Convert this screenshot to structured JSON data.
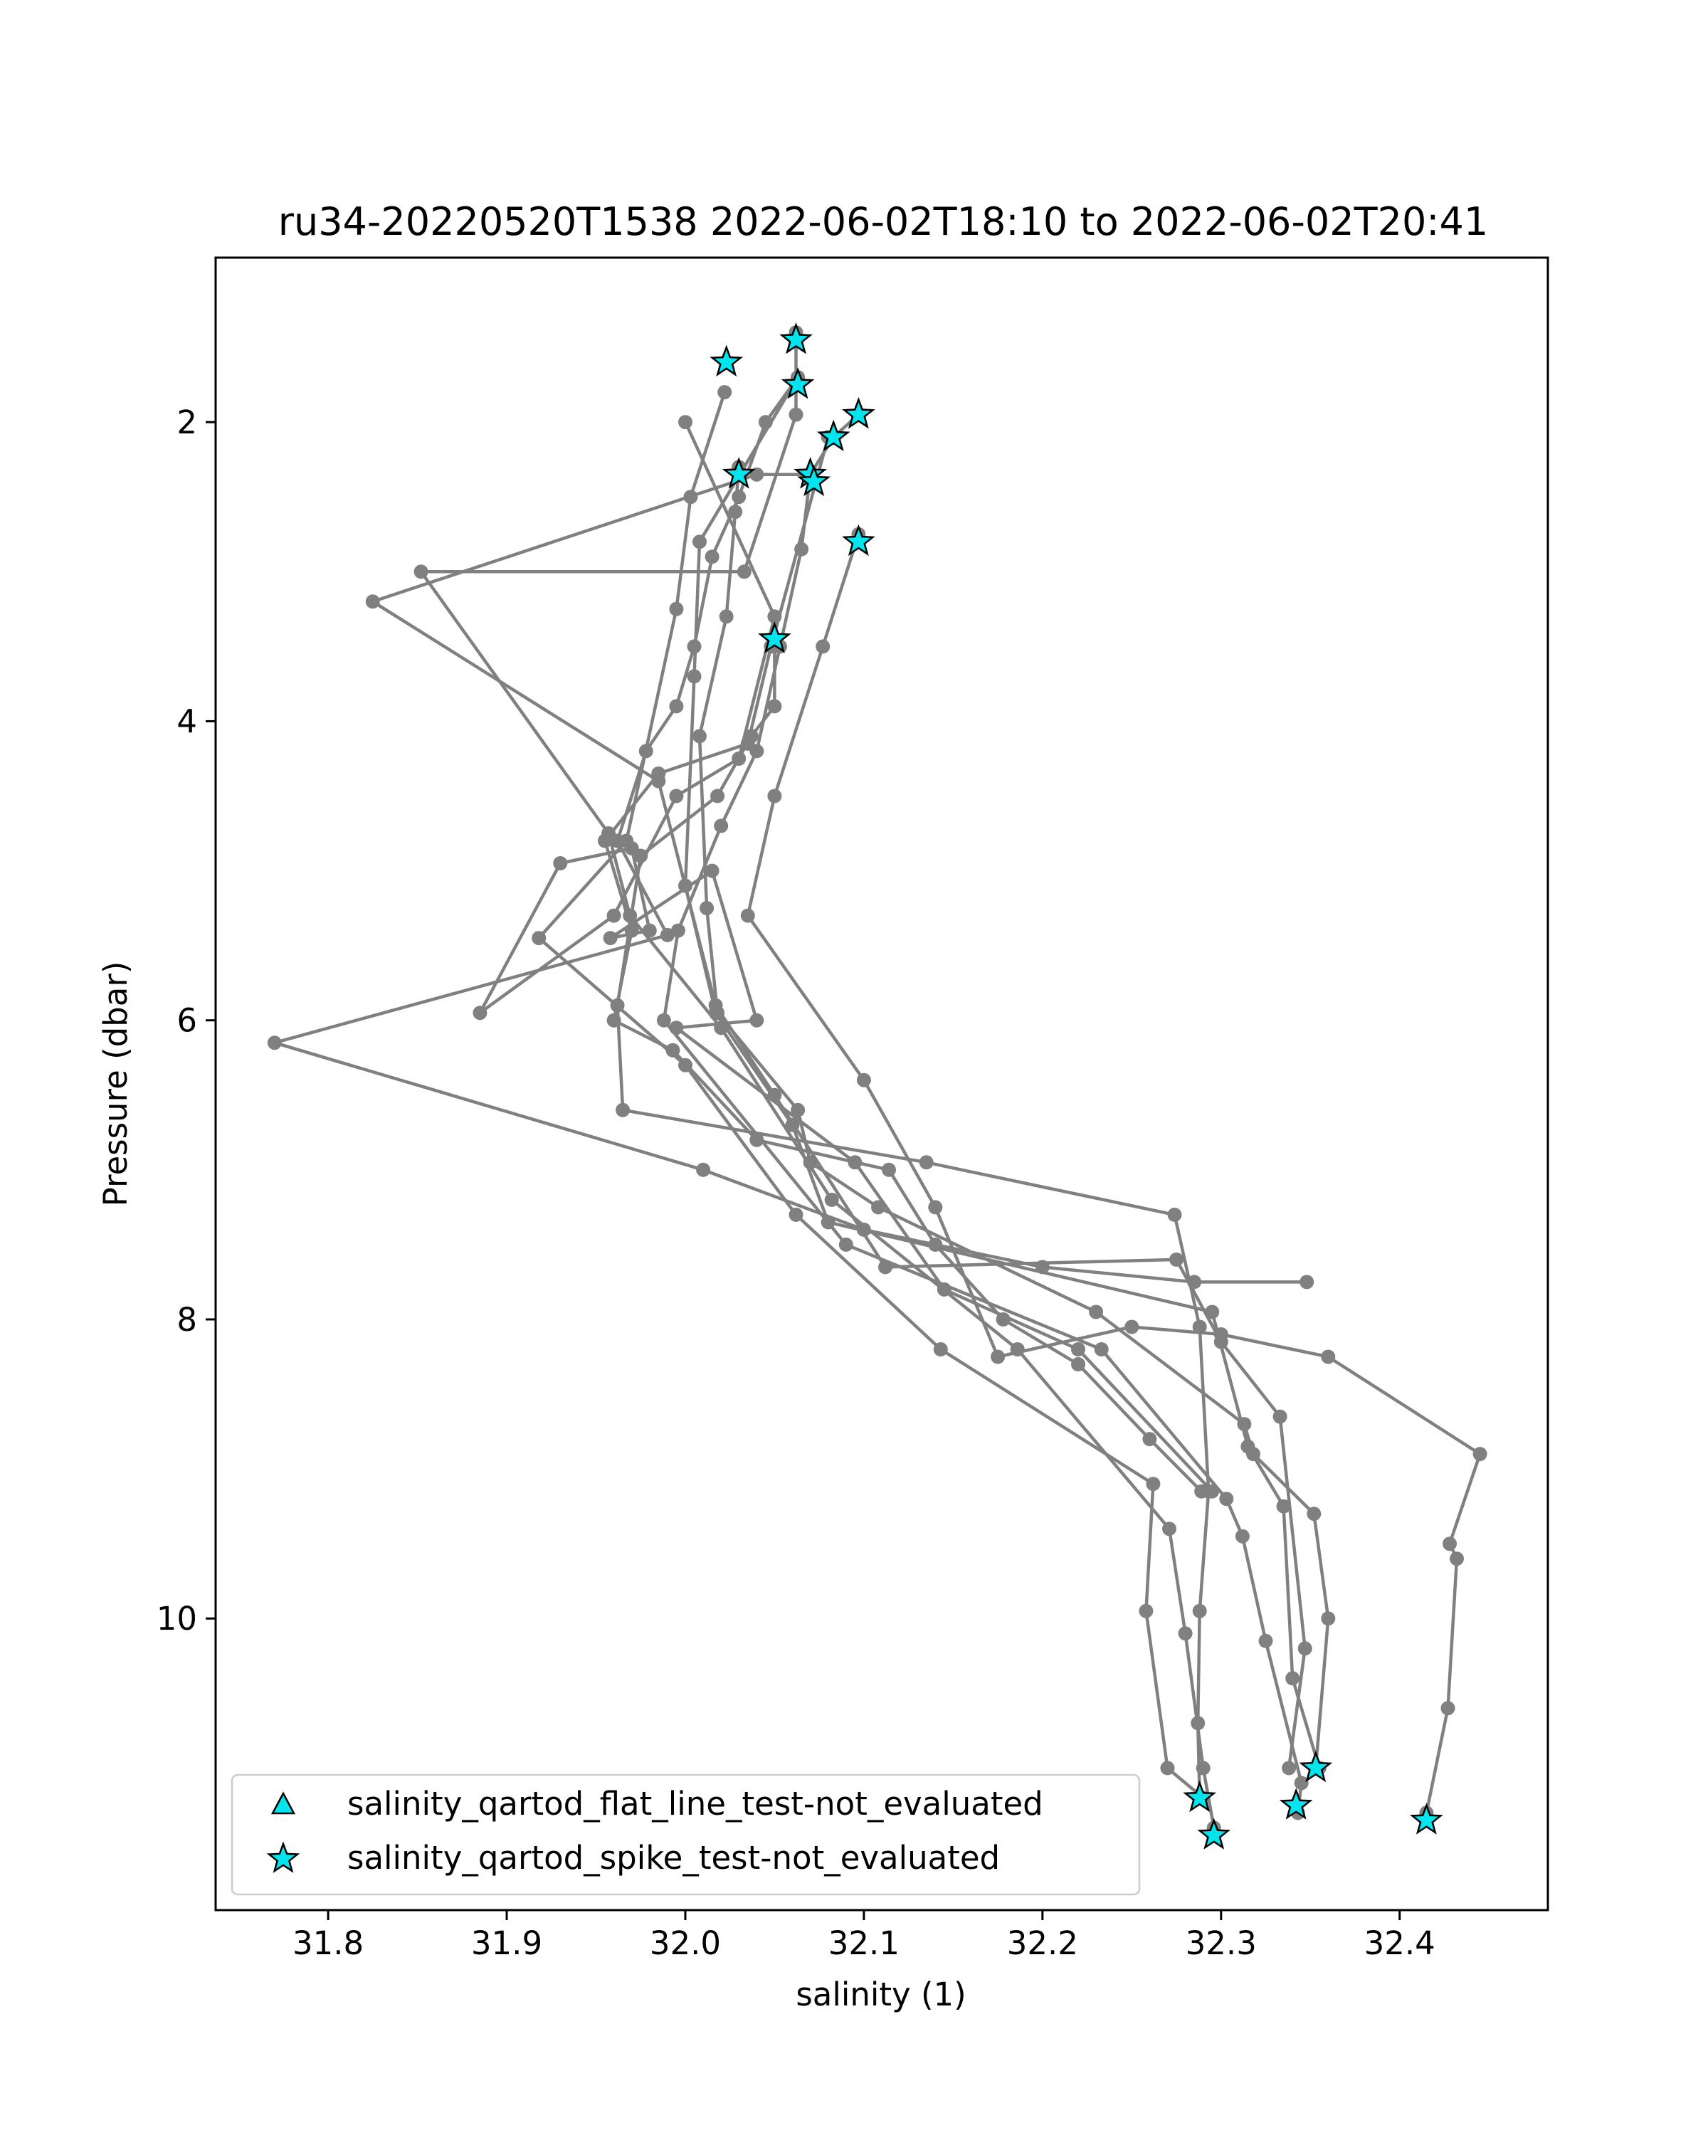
{
  "chart_data": {
    "type": "scatter",
    "title": "ru34-20220520T1538 2022-06-02T18:10 to 2022-06-02T20:41",
    "xlabel": "salinity (1)",
    "ylabel": "Pressure (dbar)",
    "xlim": [
      31.737,
      32.483
    ],
    "ylim": [
      11.95,
      0.9
    ],
    "y_inverted": true,
    "grid": false,
    "legend_position": "lower-left",
    "xticks": [
      31.8,
      31.9,
      32.0,
      32.1,
      32.2,
      32.3,
      32.4
    ],
    "xtick_labels": [
      "31.8",
      "31.9",
      "32.0",
      "32.1",
      "32.2",
      "32.3",
      "32.4"
    ],
    "yticks": [
      2,
      4,
      6,
      8,
      10
    ],
    "ytick_labels": [
      "2",
      "4",
      "6",
      "8",
      "10"
    ],
    "colors": {
      "profile_line": "#808080",
      "marker_fill": "#00e5ee",
      "marker_edge": "#000000"
    },
    "series": [
      {
        "type": "line",
        "points": [
          [
            32.022,
            1.8
          ],
          [
            32.003,
            2.5
          ],
          [
            31.995,
            3.25
          ],
          [
            31.967,
            4.8
          ],
          [
            31.918,
            5.45
          ],
          [
            32.0,
            6.3
          ],
          [
            32.062,
            7.3
          ],
          [
            32.143,
            8.2
          ],
          [
            32.262,
            9.1
          ],
          [
            32.258,
            9.95
          ],
          [
            32.27,
            11.0
          ],
          [
            32.29,
            11.2
          ]
        ]
      },
      {
        "type": "line",
        "points": [
          [
            32.062,
            1.4
          ],
          [
            32.062,
            1.95
          ],
          [
            32.033,
            3.0
          ],
          [
            31.852,
            3.0
          ],
          [
            31.957,
            4.75
          ],
          [
            31.969,
            5.3
          ],
          [
            32.02,
            6.05
          ],
          [
            32.082,
            7.2
          ],
          [
            32.186,
            8.2
          ],
          [
            32.271,
            9.4
          ],
          [
            32.28,
            10.1
          ],
          [
            32.29,
            11.0
          ],
          [
            32.296,
            11.4
          ]
        ]
      },
      {
        "type": "line",
        "points": [
          [
            32.063,
            1.7
          ],
          [
            32.008,
            2.8
          ],
          [
            32.005,
            3.7
          ],
          [
            32.0,
            5.1
          ],
          [
            32.017,
            5.95
          ],
          [
            32.06,
            6.7
          ],
          [
            32.08,
            7.35
          ],
          [
            32.295,
            7.95
          ],
          [
            32.315,
            8.85
          ],
          [
            32.335,
            9.25
          ],
          [
            32.34,
            10.4
          ],
          [
            32.355,
            11.0
          ]
        ]
      },
      {
        "type": "line",
        "points": [
          [
            32.097,
            1.95
          ],
          [
            32.083,
            2.1
          ],
          [
            32.07,
            2.35
          ],
          [
            32.065,
            2.85
          ],
          [
            32.053,
            3.5
          ],
          [
            32.04,
            4.2
          ],
          [
            32.02,
            4.7
          ],
          [
            31.996,
            5.4
          ],
          [
            31.988,
            6.0
          ],
          [
            32.09,
            7.5
          ],
          [
            32.233,
            8.2
          ],
          [
            32.303,
            9.2
          ],
          [
            32.312,
            9.45
          ],
          [
            32.325,
            10.15
          ],
          [
            32.345,
            11.1
          ],
          [
            32.343,
            11.3
          ]
        ]
      },
      {
        "type": "line",
        "points": [
          [
            32.03,
            2.3
          ],
          [
            32.028,
            2.6
          ],
          [
            32.023,
            3.3
          ],
          [
            32.008,
            4.1
          ],
          [
            32.012,
            5.25
          ],
          [
            32.018,
            5.95
          ],
          [
            32.063,
            6.6
          ],
          [
            32.07,
            6.95
          ],
          [
            32.108,
            7.25
          ],
          [
            32.23,
            7.95
          ],
          [
            32.313,
            8.7
          ],
          [
            32.318,
            8.9
          ],
          [
            32.352,
            9.3
          ],
          [
            32.36,
            10.0
          ],
          [
            32.353,
            11.0
          ]
        ]
      },
      {
        "type": "line",
        "points": [
          [
            32.097,
            2.75
          ],
          [
            32.077,
            3.5
          ],
          [
            32.05,
            4.5
          ],
          [
            32.035,
            5.3
          ],
          [
            32.1,
            6.4
          ],
          [
            32.14,
            7.25
          ],
          [
            32.175,
            8.25
          ],
          [
            32.25,
            8.05
          ],
          [
            32.3,
            8.1
          ],
          [
            32.36,
            8.25
          ],
          [
            32.445,
            8.9
          ],
          [
            32.428,
            9.5
          ],
          [
            32.432,
            9.6
          ],
          [
            32.427,
            10.6
          ],
          [
            32.415,
            11.3
          ]
        ]
      },
      {
        "type": "line",
        "points": [
          [
            32.07,
            2.35
          ],
          [
            32.04,
            2.35
          ],
          [
            31.825,
            3.2
          ],
          [
            31.985,
            4.4
          ],
          [
            32.017,
            5.9
          ],
          [
            32.05,
            6.5
          ],
          [
            32.112,
            7.65
          ],
          [
            32.275,
            7.6
          ],
          [
            32.3,
            8.15
          ],
          [
            32.333,
            8.65
          ],
          [
            32.347,
            10.2
          ],
          [
            32.338,
            11.0
          ]
        ]
      },
      {
        "type": "line",
        "points": [
          [
            32.05,
            3.45
          ],
          [
            32.05,
            3.9
          ],
          [
            32.037,
            4.1
          ],
          [
            32.018,
            4.5
          ],
          [
            31.975,
            4.9
          ],
          [
            31.962,
            5.9
          ],
          [
            31.965,
            6.6
          ],
          [
            32.135,
            6.95
          ],
          [
            32.274,
            7.3
          ],
          [
            32.288,
            8.05
          ],
          [
            32.293,
            9.15
          ],
          [
            32.288,
            9.95
          ],
          [
            32.287,
            10.7
          ],
          [
            32.288,
            11.2
          ]
        ]
      },
      {
        "type": "line",
        "points": [
          [
            32.0,
            2.0
          ],
          [
            32.05,
            3.3
          ],
          [
            32.03,
            4.25
          ],
          [
            31.995,
            4.5
          ],
          [
            31.96,
            5.3
          ],
          [
            31.885,
            5.95
          ],
          [
            31.93,
            4.95
          ],
          [
            31.97,
            4.85
          ],
          [
            31.98,
            5.4
          ],
          [
            31.958,
            5.45
          ],
          [
            32.015,
            5.0
          ],
          [
            32.04,
            6.0
          ],
          [
            31.995,
            6.05
          ],
          [
            32.095,
            6.95
          ],
          [
            32.145,
            7.8
          ],
          [
            32.22,
            8.2
          ],
          [
            32.295,
            9.15
          ]
        ]
      },
      {
        "type": "line",
        "points": [
          [
            32.08,
            2.1
          ],
          [
            32.048,
            3.5
          ],
          [
            32.035,
            4.15
          ],
          [
            31.985,
            4.35
          ],
          [
            31.955,
            4.8
          ],
          [
            31.97,
            5.4
          ],
          [
            31.96,
            6.0
          ],
          [
            31.993,
            6.2
          ],
          [
            32.04,
            6.8
          ],
          [
            32.114,
            7.0
          ],
          [
            32.14,
            7.5
          ],
          [
            32.178,
            8.0
          ],
          [
            32.22,
            8.3
          ],
          [
            32.26,
            8.8
          ],
          [
            32.289,
            9.15
          ]
        ]
      },
      {
        "type": "line",
        "points": [
          [
            32.063,
            1.7
          ],
          [
            32.045,
            2.0
          ],
          [
            32.03,
            2.5
          ],
          [
            32.015,
            2.9
          ],
          [
            32.005,
            3.5
          ],
          [
            31.995,
            3.9
          ],
          [
            31.978,
            4.2
          ],
          [
            31.962,
            4.8
          ],
          [
            31.99,
            5.43
          ],
          [
            31.77,
            6.15
          ],
          [
            32.01,
            7.0
          ],
          [
            32.1,
            7.4
          ],
          [
            32.2,
            7.65
          ],
          [
            32.285,
            7.75
          ],
          [
            32.348,
            7.75
          ]
        ]
      }
    ],
    "markers": {
      "star_points": [
        [
          32.023,
          1.6
        ],
        [
          32.062,
          1.45
        ],
        [
          32.063,
          1.75
        ],
        [
          32.097,
          1.95
        ],
        [
          32.083,
          2.1
        ],
        [
          32.03,
          2.35
        ],
        [
          32.07,
          2.35
        ],
        [
          32.072,
          2.4
        ],
        [
          32.097,
          2.8
        ],
        [
          32.05,
          3.45
        ],
        [
          32.288,
          11.2
        ],
        [
          32.296,
          11.45
        ],
        [
          32.342,
          11.25
        ],
        [
          32.353,
          11.0
        ],
        [
          32.415,
          11.35
        ]
      ],
      "triangle_points": []
    },
    "legend": [
      {
        "marker": "triangle",
        "label": "salinity_qartod_flat_line_test-not_evaluated"
      },
      {
        "marker": "star",
        "label": "salinity_qartod_spike_test-not_evaluated"
      }
    ]
  }
}
